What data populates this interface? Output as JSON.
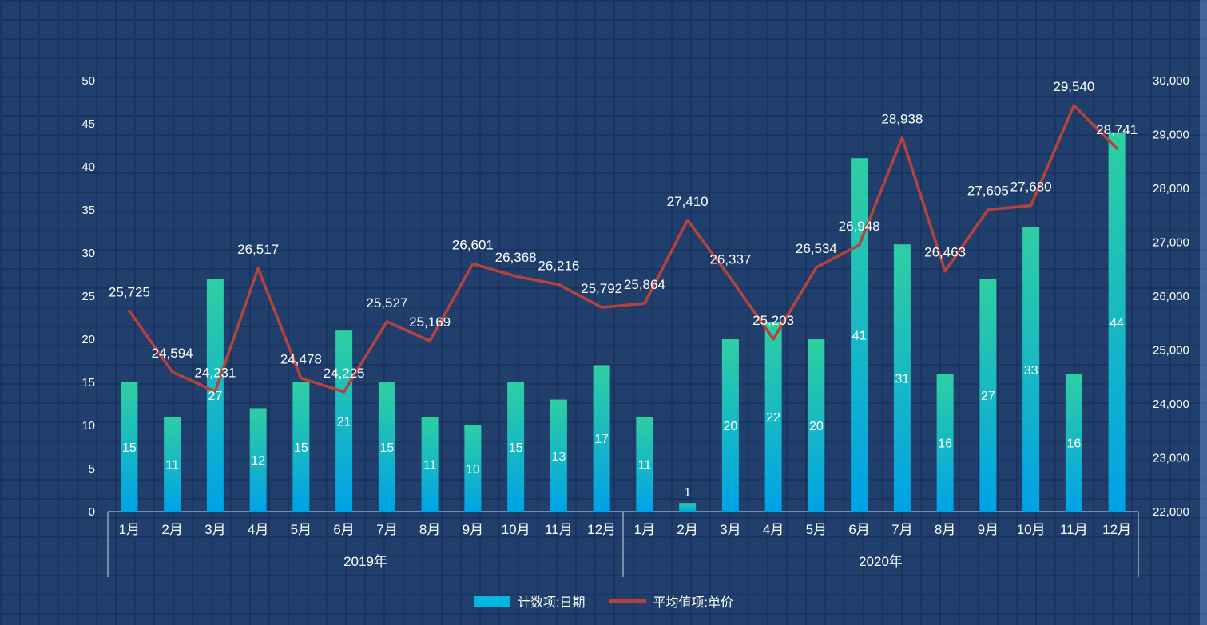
{
  "legend": {
    "bar_label": "计数项:日期",
    "line_label": "平均值项:单价"
  },
  "chart_data": {
    "type": "bar",
    "subtype": "combo-bar-line",
    "legend_position": "bottom",
    "grid": "background-tiles",
    "groups": [
      {
        "label": "2019年",
        "months": [
          "1月",
          "2月",
          "3月",
          "4月",
          "5月",
          "6月",
          "7月",
          "8月",
          "9月",
          "10月",
          "11月",
          "12月"
        ]
      },
      {
        "label": "2020年",
        "months": [
          "1月",
          "2月",
          "3月",
          "4月",
          "5月",
          "6月",
          "7月",
          "8月",
          "9月",
          "10月",
          "11月",
          "12月"
        ]
      }
    ],
    "series": [
      {
        "name": "计数项:日期",
        "type": "bar",
        "axis": "left",
        "values": [
          15,
          11,
          27,
          12,
          15,
          21,
          15,
          11,
          10,
          15,
          13,
          17,
          11,
          1,
          20,
          22,
          20,
          41,
          31,
          16,
          27,
          33,
          16,
          44
        ]
      },
      {
        "name": "平均值项:单价",
        "type": "line",
        "axis": "right",
        "values": [
          25725,
          24594,
          24231,
          26517,
          24478,
          24225,
          25527,
          25169,
          26601,
          26368,
          26216,
          25792,
          25864,
          27410,
          26337,
          25203,
          26534,
          26948,
          28938,
          26463,
          27605,
          27680,
          29540,
          28741
        ]
      }
    ],
    "left_axis": {
      "min": 0,
      "max": 50,
      "step": 5
    },
    "right_axis": {
      "min": 22000,
      "max": 30000,
      "step": 1000
    },
    "colors": {
      "bar_top": "#2fcfa2",
      "bar_bottom": "#00a2e6",
      "bar_legend": "#00b7e0",
      "line": "#b5433c",
      "text": "#ffffff",
      "background": "#213f6d",
      "grid_line": "#193460",
      "axis_line": "#cfd8e8"
    }
  }
}
